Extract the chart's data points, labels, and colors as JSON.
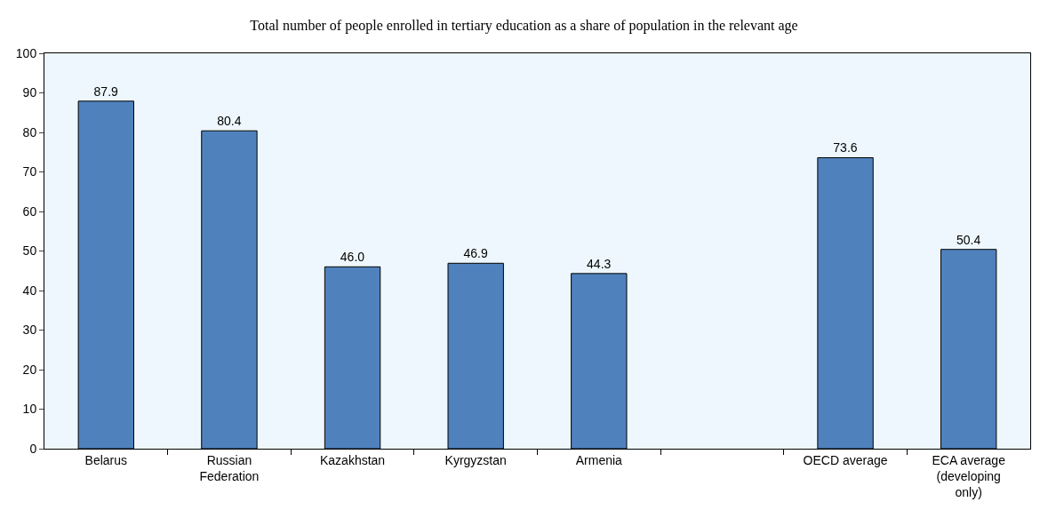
{
  "chart_data": {
    "type": "bar",
    "title": "Total number of people enrolled in tertiary education as a share of population in the relevant age",
    "categories": [
      "Belarus",
      "Russian Federation",
      "Kazakhstan",
      "Kyrgyzstan",
      "Armenia",
      null,
      "OECD average",
      "ECA average (developing only)"
    ],
    "values": [
      87.9,
      80.4,
      46.0,
      46.9,
      44.3,
      null,
      73.6,
      50.4
    ],
    "value_labels": [
      "87.9",
      "80.4",
      "46.0",
      "46.9",
      "44.3",
      null,
      "73.6",
      "50.4"
    ],
    "color": "#4f81bd",
    "ylim": [
      0,
      100
    ],
    "yticks": [
      0,
      10,
      20,
      30,
      40,
      50,
      60,
      70,
      80,
      90,
      100
    ],
    "grid": false,
    "legend": false
  }
}
